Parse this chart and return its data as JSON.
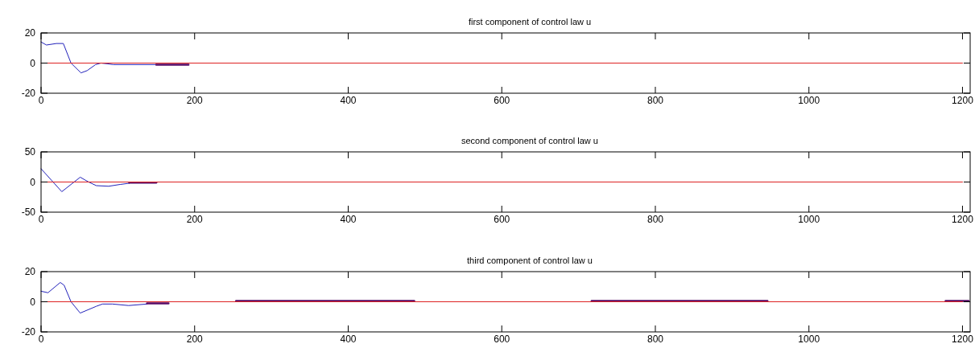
{
  "chart_data": [
    {
      "type": "line",
      "title": "first component of control law u",
      "xlim": [
        0,
        1210
      ],
      "xticks": [
        0,
        200,
        400,
        600,
        800,
        1000,
        1200
      ],
      "ylim": [
        -20,
        20
      ],
      "yticks": [
        -20,
        0,
        20
      ],
      "series": [
        {
          "color": "#2222bb",
          "x": [
            0,
            7,
            20,
            29,
            39,
            52,
            60,
            71,
            78,
            87,
            94,
            150
          ],
          "values": [
            14,
            12,
            13,
            13,
            0,
            -6.5,
            -5,
            -1,
            0,
            -0.5,
            -1,
            -1
          ]
        },
        {
          "color": "#550a66",
          "x": [
            150,
            192
          ],
          "values": [
            -1,
            -1
          ]
        },
        {
          "color": "#dd2222",
          "x": [
            0,
            1200
          ],
          "values": [
            0,
            0
          ]
        }
      ]
    },
    {
      "type": "line",
      "title": "second component of control law u",
      "xlim": [
        0,
        1210
      ],
      "xticks": [
        0,
        200,
        400,
        600,
        800,
        1000,
        1200
      ],
      "ylim": [
        -50,
        50
      ],
      "yticks": [
        -50,
        0,
        50
      ],
      "series": [
        {
          "color": "#2222bb",
          "x": [
            0,
            27,
            51,
            62,
            72,
            88,
            103,
            115
          ],
          "values": [
            22,
            -16,
            8,
            0,
            -6,
            -7,
            -4,
            -2
          ]
        },
        {
          "color": "#550a66",
          "x": [
            115,
            150
          ],
          "values": [
            -1,
            -1
          ]
        },
        {
          "color": "#dd2222",
          "x": [
            0,
            1200
          ],
          "values": [
            0,
            0
          ]
        }
      ]
    },
    {
      "type": "line",
      "title": "third component of control law u",
      "xlim": [
        0,
        1210
      ],
      "xticks": [
        0,
        200,
        400,
        600,
        800,
        1000,
        1200
      ],
      "ylim": [
        -20,
        20
      ],
      "yticks": [
        -20,
        0,
        20
      ],
      "series": [
        {
          "color": "#2222bb",
          "x": [
            0,
            9,
            25,
            30,
            39,
            51,
            72,
            80,
            93,
            114,
            138
          ],
          "values": [
            7,
            6,
            12.8,
            11,
            0,
            -7.5,
            -3,
            -1.5,
            -1.5,
            -2.5,
            -1.5
          ]
        },
        {
          "color": "#550a66",
          "x": [
            138,
            166,
            167,
            254,
            486,
            487,
            717,
            946,
            947,
            1178,
            1208
          ],
          "values": [
            -1,
            -1,
            null,
            0.5,
            0.5,
            null,
            0.5,
            0.5,
            null,
            0.5,
            0.5
          ]
        },
        {
          "color": "#dd2222",
          "x": [
            0,
            1200
          ],
          "values": [
            0,
            0
          ]
        }
      ]
    }
  ]
}
